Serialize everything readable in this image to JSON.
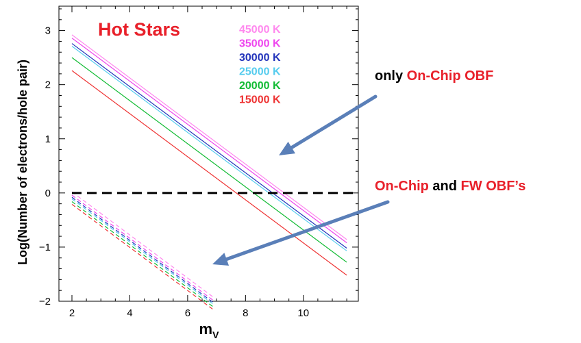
{
  "chart_data": {
    "type": "line",
    "title": "Hot Stars",
    "title_color": "#e8202a",
    "xlabel": "m",
    "xlabel_subscript": "V",
    "ylabel": "Log(Number of electrons/hole pair)",
    "xlim": [
      1.55,
      11.9
    ],
    "ylim": [
      -2,
      3.45
    ],
    "xticks": [
      2,
      4,
      6,
      8,
      10
    ],
    "yticks": [
      -2,
      -1,
      0,
      1,
      2,
      3
    ],
    "grid": false,
    "legend_position": "top-right",
    "series": [
      {
        "name": "45000 K",
        "color": "#ff88ee",
        "solid": {
          "x": [
            2,
            11.5
          ],
          "y": [
            2.92,
            -0.86
          ]
        },
        "dashed": {
          "x": [
            2,
            6.9
          ],
          "y": [
            0.02,
            -1.93
          ]
        }
      },
      {
        "name": "35000 K",
        "color": "#ee44ee",
        "solid": {
          "x": [
            2,
            11.5
          ],
          "y": [
            2.86,
            -0.92
          ]
        },
        "dashed": {
          "x": [
            2,
            6.9
          ],
          "y": [
            -0.04,
            -1.99
          ]
        }
      },
      {
        "name": "30000 K",
        "color": "#2233bb",
        "solid": {
          "x": [
            2,
            11.5
          ],
          "y": [
            2.76,
            -1.02
          ]
        },
        "dashed": {
          "x": [
            2,
            6.9
          ],
          "y": [
            -0.08,
            -2.03
          ]
        }
      },
      {
        "name": "25000 K",
        "color": "#55ccee",
        "solid": {
          "x": [
            2,
            11.5
          ],
          "y": [
            2.71,
            -1.07
          ]
        },
        "dashed": {
          "x": [
            2,
            6.9
          ],
          "y": [
            -0.11,
            -2.06
          ]
        }
      },
      {
        "name": "20000 K",
        "color": "#11bb33",
        "solid": {
          "x": [
            2,
            11.5
          ],
          "y": [
            2.5,
            -1.28
          ]
        },
        "dashed": {
          "x": [
            2,
            6.9
          ],
          "y": [
            -0.16,
            -2.11
          ]
        }
      },
      {
        "name": "15000 K",
        "color": "#ee3333",
        "solid": {
          "x": [
            2,
            11.5
          ],
          "y": [
            2.26,
            -1.52
          ]
        },
        "dashed": {
          "x": [
            2,
            6.9
          ],
          "y": [
            -0.21,
            -2.16
          ]
        }
      }
    ],
    "reference_line": {
      "y": 0,
      "style": "dashed",
      "color": "#000000"
    },
    "annotations": [
      {
        "id": "only-onchip",
        "parts": [
          {
            "text": "only ",
            "color": "#000000"
          },
          {
            "text": "On-Chip OBF",
            "color": "#e8202a"
          }
        ]
      },
      {
        "id": "onchip-fw",
        "parts": [
          {
            "text": "On-Chip",
            "color": "#e8202a"
          },
          {
            "text": " and ",
            "color": "#000000"
          },
          {
            "text": "FW OBF’s",
            "color": "#e8202a"
          }
        ]
      }
    ],
    "arrow_color": "#5a7fb8"
  }
}
